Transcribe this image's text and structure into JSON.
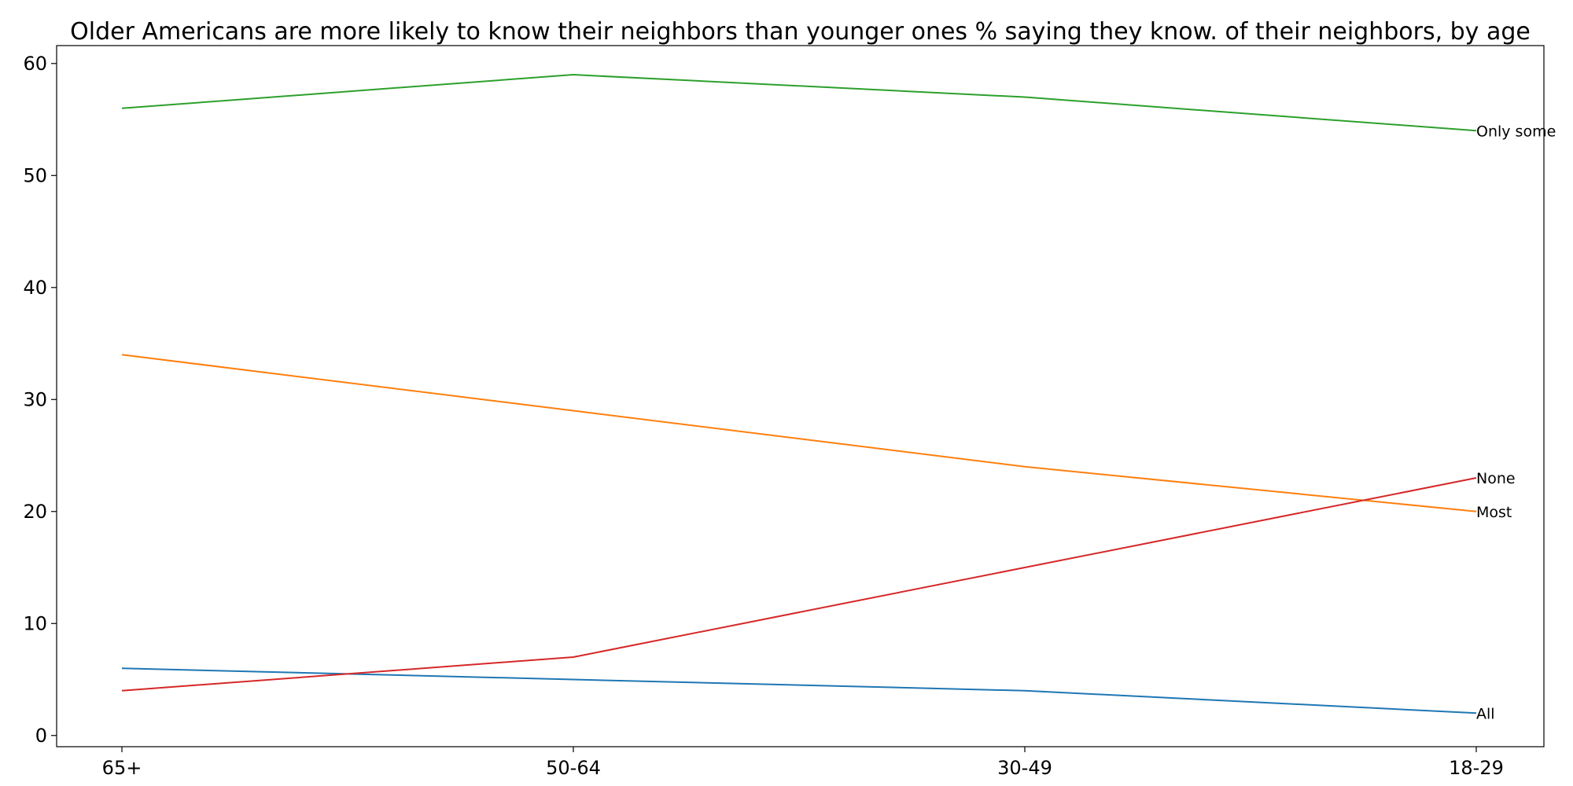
{
  "chart_data": {
    "type": "line",
    "title": "Older Americans are more likely to know their neighbors than younger ones % saying they know. of their neighbors, by age",
    "xlabel": "",
    "ylabel": "",
    "categories": [
      "65+",
      "50-64",
      "30-49",
      "18-29"
    ],
    "ylim": [
      -1,
      61.6
    ],
    "yticks": [
      0,
      10,
      20,
      30,
      40,
      50,
      60
    ],
    "grid": false,
    "legend": "none",
    "series": [
      {
        "name": "All",
        "values": [
          6,
          5,
          4,
          2
        ],
        "color": "#1f77b4"
      },
      {
        "name": "Most",
        "values": [
          34,
          29,
          24,
          20
        ],
        "color": "#ff7f0e"
      },
      {
        "name": "Only some",
        "values": [
          56,
          59,
          57,
          54
        ],
        "color": "#2ca02c"
      },
      {
        "name": "None",
        "values": [
          4,
          7,
          15,
          23
        ],
        "color": "#d62728"
      }
    ]
  }
}
